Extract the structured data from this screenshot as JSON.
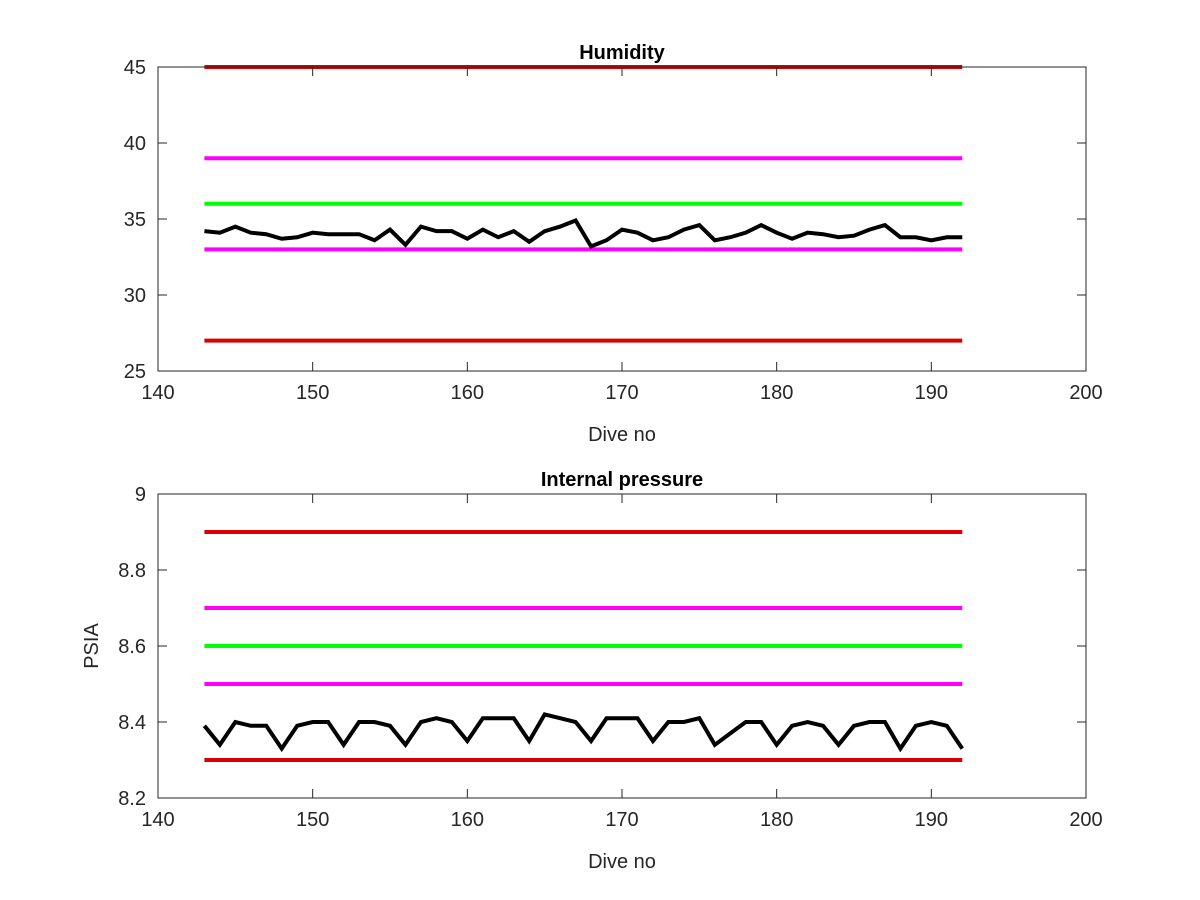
{
  "chart_data": [
    {
      "type": "line",
      "title": "Humidity",
      "xlabel": "Dive no",
      "ylabel": "",
      "xlim": [
        140,
        200
      ],
      "ylim": [
        25,
        45
      ],
      "xticks": [
        140,
        150,
        160,
        170,
        180,
        190,
        200
      ],
      "yticks": [
        25,
        30,
        35,
        40,
        45
      ],
      "xtick_labels": [
        "140",
        "150",
        "160",
        "170",
        "180",
        "190",
        "200"
      ],
      "ytick_labels": [
        "25",
        "30",
        "35",
        "40",
        "45"
      ],
      "grid": false,
      "series": [
        {
          "color": "#d90000",
          "width": 4,
          "x": [
            143,
            192
          ],
          "y": [
            45,
            45
          ]
        },
        {
          "color": "#ff00ff",
          "width": 4,
          "x": [
            143,
            192
          ],
          "y": [
            39,
            39
          ]
        },
        {
          "color": "#00ff00",
          "width": 4,
          "x": [
            143,
            192
          ],
          "y": [
            36,
            36
          ]
        },
        {
          "color": "#ff00ff",
          "width": 4,
          "x": [
            143,
            192
          ],
          "y": [
            33,
            33
          ]
        },
        {
          "color": "#d90000",
          "width": 4,
          "x": [
            143,
            192
          ],
          "y": [
            27,
            27
          ]
        },
        {
          "color": "#000000",
          "width": 4,
          "x": [
            143,
            144,
            145,
            146,
            147,
            148,
            149,
            150,
            151,
            152,
            153,
            154,
            155,
            156,
            157,
            158,
            159,
            160,
            161,
            162,
            163,
            164,
            165,
            166,
            167,
            168,
            169,
            170,
            171,
            172,
            173,
            174,
            175,
            176,
            177,
            178,
            179,
            180,
            181,
            182,
            183,
            184,
            185,
            186,
            187,
            188,
            189,
            190,
            191,
            192
          ],
          "y": [
            34.2,
            34.1,
            34.5,
            34.1,
            34.0,
            33.7,
            33.8,
            34.1,
            34.0,
            34.0,
            34.0,
            33.6,
            34.3,
            33.3,
            34.5,
            34.2,
            34.2,
            33.7,
            34.3,
            33.8,
            34.2,
            33.5,
            34.2,
            34.5,
            34.9,
            33.2,
            33.6,
            34.3,
            34.1,
            33.6,
            33.8,
            34.3,
            34.6,
            33.6,
            33.8,
            34.1,
            34.6,
            34.1,
            33.7,
            34.1,
            34.0,
            33.8,
            33.9,
            34.3,
            34.6,
            33.8,
            33.8,
            33.6,
            33.8,
            33.8
          ]
        }
      ]
    },
    {
      "type": "line",
      "title": "Internal pressure",
      "xlabel": "Dive no",
      "ylabel": "PSIA",
      "xlim": [
        140,
        200
      ],
      "ylim": [
        8.2,
        9.0
      ],
      "xticks": [
        140,
        150,
        160,
        170,
        180,
        190,
        200
      ],
      "yticks": [
        8.2,
        8.4,
        8.6,
        8.8,
        9.0
      ],
      "xtick_labels": [
        "140",
        "150",
        "160",
        "170",
        "180",
        "190",
        "200"
      ],
      "ytick_labels": [
        "8.2",
        "8.4",
        "8.6",
        "8.8",
        "9"
      ],
      "grid": false,
      "series": [
        {
          "color": "#d90000",
          "width": 4,
          "x": [
            143,
            192
          ],
          "y": [
            8.9,
            8.9
          ]
        },
        {
          "color": "#ff00ff",
          "width": 4,
          "x": [
            143,
            192
          ],
          "y": [
            8.7,
            8.7
          ]
        },
        {
          "color": "#00ff00",
          "width": 4,
          "x": [
            143,
            192
          ],
          "y": [
            8.6,
            8.6
          ]
        },
        {
          "color": "#ff00ff",
          "width": 4,
          "x": [
            143,
            192
          ],
          "y": [
            8.5,
            8.5
          ]
        },
        {
          "color": "#d90000",
          "width": 4,
          "x": [
            143,
            192
          ],
          "y": [
            8.3,
            8.3
          ]
        },
        {
          "color": "#000000",
          "width": 4,
          "x": [
            143,
            144,
            145,
            146,
            147,
            148,
            149,
            150,
            151,
            152,
            153,
            154,
            155,
            156,
            157,
            158,
            159,
            160,
            161,
            162,
            163,
            164,
            165,
            166,
            167,
            168,
            169,
            170,
            171,
            172,
            173,
            174,
            175,
            176,
            177,
            178,
            179,
            180,
            181,
            182,
            183,
            184,
            185,
            186,
            187,
            188,
            189,
            190,
            191,
            192
          ],
          "y": [
            8.39,
            8.34,
            8.4,
            8.39,
            8.39,
            8.33,
            8.39,
            8.4,
            8.4,
            8.34,
            8.4,
            8.4,
            8.39,
            8.34,
            8.4,
            8.41,
            8.4,
            8.35,
            8.41,
            8.41,
            8.41,
            8.35,
            8.42,
            8.41,
            8.4,
            8.35,
            8.41,
            8.41,
            8.41,
            8.35,
            8.4,
            8.4,
            8.41,
            8.34,
            8.37,
            8.4,
            8.4,
            8.34,
            8.39,
            8.4,
            8.39,
            8.34,
            8.39,
            8.4,
            8.4,
            8.33,
            8.39,
            8.4,
            8.39,
            8.33
          ]
        }
      ]
    }
  ]
}
